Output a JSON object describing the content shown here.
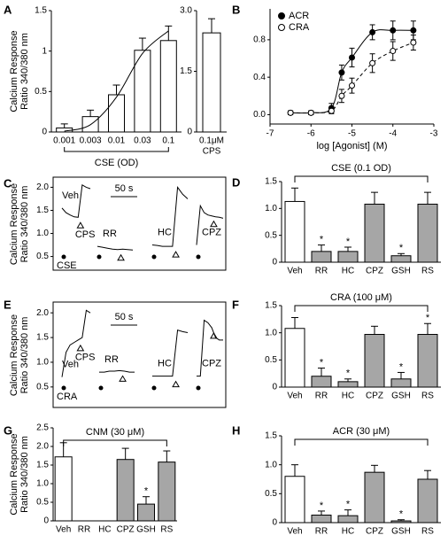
{
  "chart_data": [
    {
      "panel": "A",
      "type": "bar",
      "ylabel": [
        "Calcium Response",
        "Ratio 340/380 nm"
      ],
      "xlabel": "CSE (OD)",
      "categories": [
        "0.001",
        "0.003",
        "0.01",
        "0.03",
        "0.1"
      ],
      "values": [
        0.05,
        0.19,
        0.46,
        1.01,
        1.13
      ],
      "errors": [
        0.05,
        0.08,
        0.12,
        0.15,
        0.18
      ],
      "fit": [
        0.01,
        0.09,
        0.43,
        0.97,
        1.25
      ],
      "colors": [
        "#ffffff",
        "#ffffff",
        "#ffffff",
        "#ffffff",
        "#ffffff"
      ],
      "ylim": [
        0,
        1.5
      ],
      "yticks": [
        0,
        0.5,
        1,
        1.5
      ]
    },
    {
      "type": "bar",
      "xlabel": "CPS",
      "categories": [
        "0.1μM"
      ],
      "values": [
        2.45
      ],
      "errors": [
        0.35
      ],
      "colors": [
        "#ffffff"
      ],
      "ylim": [
        0,
        3
      ],
      "yticks": [
        0,
        1.5,
        {
          "value": 3,
          "label": "3.0"
        }
      ]
    },
    {
      "panel": "B",
      "type": "line",
      "xlabel": "log [Agonist] (M)",
      "xlim": [
        -7,
        -3
      ],
      "xticks": [
        -7,
        -6,
        -5,
        -4,
        -3
      ],
      "ylim": [
        -0.1,
        1.13
      ],
      "yticks": [
        {
          "value": 0,
          "label": "0.0"
        },
        0.4,
        0.8
      ],
      "legend": "upper-left",
      "series": [
        {
          "name": "ACR",
          "color": "#000000",
          "marker": "filled",
          "dash": "solid",
          "x": [
            -6.5,
            -6,
            -5.5,
            -5.25,
            -5,
            -4.5,
            -4,
            -3.5
          ],
          "values": [
            0.02,
            0.02,
            0.07,
            0.45,
            0.61,
            0.88,
            0.9,
            0.9
          ],
          "errors": [
            0.02,
            0.02,
            0.05,
            0.08,
            0.1,
            0.08,
            0.1,
            0.1
          ]
        },
        {
          "name": "CRA",
          "color": "#000000",
          "marker": "open",
          "dash": "dashed",
          "x": [
            -6.5,
            -6,
            -5.5,
            -5.25,
            -5,
            -4.5,
            -4,
            -3.5
          ],
          "values": [
            0.02,
            0.02,
            0.04,
            0.2,
            0.31,
            0.55,
            0.68,
            0.77
          ],
          "errors": [
            0.02,
            0.02,
            0.03,
            0.07,
            0.08,
            0.1,
            0.1,
            0.08
          ]
        }
      ]
    },
    {
      "panel": "C",
      "type": "trace",
      "ylabel": [
        "Calcium Response",
        "Ratio 340/380 nm"
      ],
      "ylim": [
        0.3,
        2.2
      ],
      "yticks": [
        0.5,
        {
          "value": 1,
          "label": "1.0"
        },
        1.5,
        {
          "value": 2,
          "label": "2.0"
        }
      ],
      "scale_bar": "50 s",
      "stimulus": "CSE",
      "agonist": "CPS",
      "traces": [
        {
          "name": "Veh",
          "values": [
            1.55,
            1.45,
            1.4,
            1.36,
            1.35,
            2.05,
            2.0,
            1.97
          ]
        },
        {
          "name": "RR",
          "values": [
            0.72,
            0.7,
            0.68,
            0.66,
            0.65,
            0.66,
            0.65,
            0.64
          ]
        },
        {
          "name": "HC",
          "values": [
            0.75,
            0.74,
            0.72,
            0.72,
            0.72,
            2.0,
            1.85,
            1.75
          ]
        },
        {
          "name": "CPZ",
          "values": [
            0.75,
            1.6,
            1.45,
            1.4,
            1.38,
            1.36,
            1.35,
            1.33
          ]
        }
      ]
    },
    {
      "panel": "D",
      "type": "bar",
      "title": "CSE (0.1 OD)",
      "categories": [
        "Veh",
        "RR",
        "HC",
        "CPZ",
        "GSH",
        "RS"
      ],
      "values": [
        1.13,
        0.2,
        0.2,
        1.08,
        0.12,
        1.08
      ],
      "errors": [
        0.25,
        0.12,
        0.08,
        0.22,
        0.04,
        0.22
      ],
      "significance": [
        null,
        "*",
        "*",
        null,
        "*",
        null
      ],
      "colors": [
        "#ffffff",
        "#a6a6a6",
        "#a6a6a6",
        "#a6a6a6",
        "#a6a6a6",
        "#a6a6a6"
      ],
      "ylim": [
        0,
        1.5
      ],
      "yticks": [
        0,
        0.5,
        {
          "value": 1,
          "label": "1.0"
        },
        1.5
      ]
    },
    {
      "panel": "E",
      "type": "trace",
      "ylabel": [
        "Calcium Response",
        "Ratio 340/380 nm"
      ],
      "ylim": [
        0.3,
        2.2
      ],
      "yticks": [
        0.5,
        {
          "value": 1,
          "label": "1.0"
        },
        1.5,
        {
          "value": 2,
          "label": "2.0"
        }
      ],
      "scale_bar": "50 s",
      "stimulus": "CRA",
      "agonist": "CPS",
      "traces": [
        {
          "name": "Veh",
          "values": [
            0.7,
            1.2,
            1.35,
            1.4,
            1.45,
            1.5,
            2.05,
            2.0
          ]
        },
        {
          "name": "RR",
          "values": [
            0.8,
            0.8,
            0.82,
            0.82,
            0.83,
            0.82,
            0.8,
            0.8
          ]
        },
        {
          "name": "HC",
          "values": [
            0.72,
            0.72,
            0.72,
            0.72,
            0.72,
            1.65,
            1.62,
            1.6
          ]
        },
        {
          "name": "CPZ",
          "values": [
            0.72,
            0.72,
            1.85,
            1.8,
            1.7,
            1.5,
            1.45,
            1.45
          ]
        }
      ]
    },
    {
      "panel": "F",
      "type": "bar",
      "title": "CRA (100 μM)",
      "categories": [
        "Veh",
        "RR",
        "HC",
        "CPZ",
        "GSH",
        "RS"
      ],
      "values": [
        1.08,
        0.2,
        0.1,
        0.97,
        0.15,
        0.97
      ],
      "errors": [
        0.2,
        0.15,
        0.05,
        0.15,
        0.12,
        0.2
      ],
      "significance": [
        null,
        "*",
        "*",
        null,
        "*",
        "*"
      ],
      "colors": [
        "#ffffff",
        "#a6a6a6",
        "#a6a6a6",
        "#a6a6a6",
        "#a6a6a6",
        "#a6a6a6"
      ],
      "ylim": [
        0,
        1.5
      ],
      "yticks": [
        0,
        0.5,
        {
          "value": 1,
          "label": "1.0"
        },
        1.5
      ]
    },
    {
      "panel": "G",
      "type": "bar",
      "title": "CNM (30 μM)",
      "ylabel": [
        "Calcium Response",
        "Ratio 340/380 nm"
      ],
      "categories": [
        "Veh",
        "RR",
        "HC",
        "CPZ",
        "GSH",
        "RS"
      ],
      "values": [
        1.72,
        0,
        0,
        1.65,
        0.45,
        1.58
      ],
      "errors": [
        0.38,
        0,
        0,
        0.3,
        0.2,
        0.3
      ],
      "significance": [
        null,
        null,
        null,
        null,
        "*",
        null
      ],
      "colors": [
        "#ffffff",
        "#a6a6a6",
        "#a6a6a6",
        "#a6a6a6",
        "#a6a6a6",
        "#a6a6a6"
      ],
      "ylim": [
        0,
        2.5
      ],
      "yticks": [
        0,
        0.5,
        {
          "value": 1,
          "label": "1.0"
        },
        1.5,
        {
          "value": 2,
          "label": "2.0"
        },
        2.5
      ]
    },
    {
      "panel": "H",
      "type": "bar",
      "title": "ACR (30 μM)",
      "categories": [
        "Veh",
        "RR",
        "HC",
        "CPZ",
        "GSH",
        "RS"
      ],
      "values": [
        0.8,
        0.13,
        0.12,
        0.87,
        0.03,
        0.75
      ],
      "errors": [
        0.2,
        0.07,
        0.1,
        0.12,
        0.02,
        0.15
      ],
      "significance": [
        null,
        "*",
        "*",
        null,
        "*",
        null
      ],
      "colors": [
        "#ffffff",
        "#a6a6a6",
        "#a6a6a6",
        "#a6a6a6",
        "#a6a6a6",
        "#a6a6a6"
      ],
      "ylim": [
        0,
        1.5
      ],
      "yticks": [
        0,
        0.5,
        {
          "value": 1,
          "label": "1.0"
        },
        1.5
      ]
    }
  ]
}
